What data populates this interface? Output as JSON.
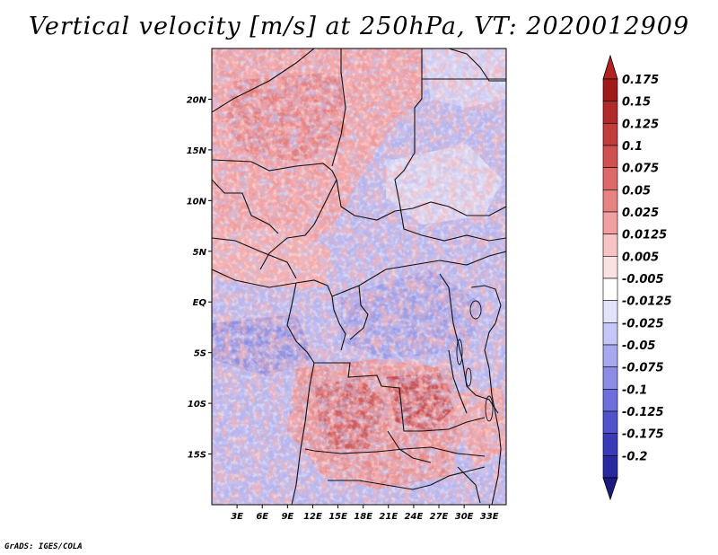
{
  "title": "Vertical velocity [m/s] at 250hPa, VT: 2020012909",
  "credit": "GrADS: IGES/COLA",
  "map": {
    "region": "Central Africa",
    "lon_range": [
      0,
      35
    ],
    "lat_range": [
      -20,
      25
    ],
    "lat_labels": [
      {
        "text": "20N",
        "lat": 20
      },
      {
        "text": "15N",
        "lat": 15
      },
      {
        "text": "10N",
        "lat": 10
      },
      {
        "text": "5N",
        "lat": 5
      },
      {
        "text": "EQ",
        "lat": 0
      },
      {
        "text": "5S",
        "lat": -5
      },
      {
        "text": "10S",
        "lat": -10
      },
      {
        "text": "15S",
        "lat": -15
      }
    ],
    "lon_labels": [
      {
        "text": "3E",
        "lon": 3
      },
      {
        "text": "6E",
        "lon": 6
      },
      {
        "text": "9E",
        "lon": 9
      },
      {
        "text": "12E",
        "lon": 12
      },
      {
        "text": "15E",
        "lon": 15
      },
      {
        "text": "18E",
        "lon": 18
      },
      {
        "text": "21E",
        "lon": 21
      },
      {
        "text": "24E",
        "lon": 24
      },
      {
        "text": "27E",
        "lon": 27
      },
      {
        "text": "30E",
        "lon": 30
      },
      {
        "text": "33E",
        "lon": 33
      }
    ]
  },
  "colorbar": {
    "labels": [
      "0.175",
      "0.15",
      "0.125",
      "0.1",
      "0.075",
      "0.05",
      "0.025",
      "0.0125",
      "0.005",
      "-0.005",
      "-0.0125",
      "-0.025",
      "-0.05",
      "-0.075",
      "-0.1",
      "-0.125",
      "-0.175",
      "-0.2"
    ],
    "colors": [
      "#a01a1a",
      "#b02a2a",
      "#c23c3c",
      "#d05050",
      "#dc6868",
      "#e68282",
      "#f0a0a0",
      "#f6c4c4",
      "#fbe2e2",
      "#ffffff",
      "#e2e2fb",
      "#c6c6f6",
      "#a8a8f0",
      "#8c8ce6",
      "#6e6edc",
      "#5252cc",
      "#3a3ab8",
      "#2828a0",
      "#1c1c88"
    ],
    "top_color": "#b22222",
    "bottom_color": "#1a1a80"
  }
}
